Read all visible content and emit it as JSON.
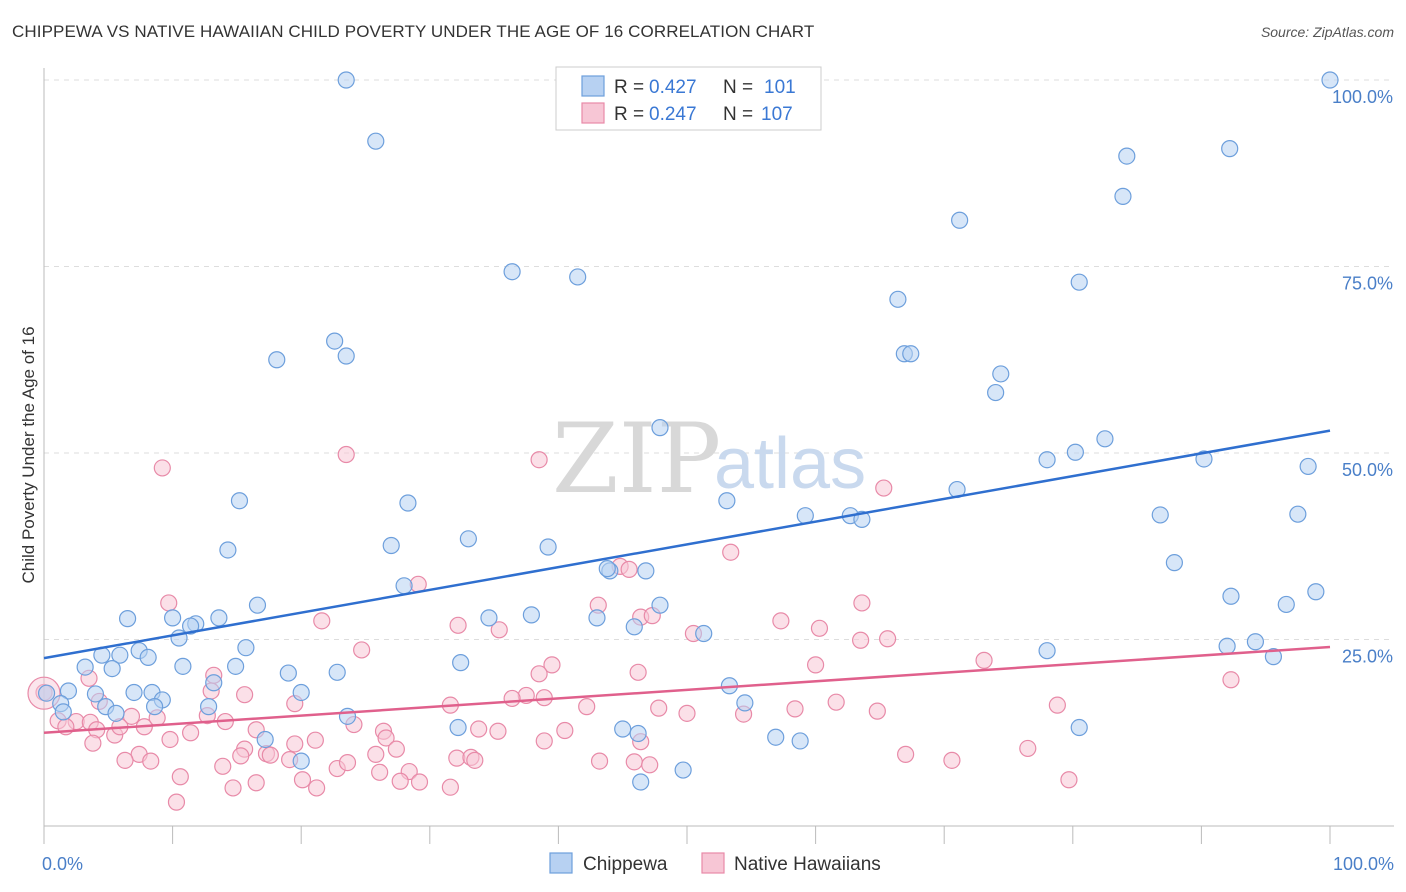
{
  "title": "CHIPPEWA VS NATIVE HAWAIIAN CHILD POVERTY UNDER THE AGE OF 16 CORRELATION CHART",
  "source": "Source: ZipAtlas.com",
  "watermark": {
    "zip": "ZIP",
    "atlas": "atlas"
  },
  "colors": {
    "series1_fill": "#b7d1f2",
    "series1_stroke": "#6d9fdc",
    "series1_line": "#2f6fcf",
    "series2_fill": "#f7c6d5",
    "series2_stroke": "#e88aa8",
    "series2_line": "#e0608c",
    "axis_text": "#4a7fc8",
    "grid": "#dddddd"
  },
  "legend_top": {
    "r_label": "R =",
    "n_label": "N =",
    "rows": [
      {
        "r": "0.427",
        "n": "101"
      },
      {
        "r": "0.247",
        "n": "107"
      }
    ]
  },
  "chart_data": {
    "type": "scatter",
    "title": "CHIPPEWA VS NATIVE HAWAIIAN CHILD POVERTY UNDER THE AGE OF 16 CORRELATION CHART",
    "xlabel": "",
    "ylabel": "Child Poverty Under the Age of 16",
    "xlim": [
      0,
      100
    ],
    "ylim": [
      0,
      100
    ],
    "x_tick_labels": [
      "0.0%",
      "100.0%"
    ],
    "y_ticks": [
      25,
      50,
      75,
      100
    ],
    "y_tick_labels": [
      "25.0%",
      "50.0%",
      "75.0%",
      "100.0%"
    ],
    "grid": true,
    "legend_position": "bottom",
    "series": [
      {
        "name": "Chippewa",
        "R": 0.427,
        "N": 101,
        "trend": {
          "x": [
            0,
            100
          ],
          "y": [
            22.5,
            53
          ]
        },
        "points": [
          [
            23.5,
            100
          ],
          [
            100,
            100
          ],
          [
            25.8,
            91.8
          ],
          [
            84.2,
            89.8
          ],
          [
            92.2,
            90.8
          ],
          [
            83.9,
            84.4
          ],
          [
            71.2,
            81.2
          ],
          [
            36.4,
            74.3
          ],
          [
            41.5,
            73.6
          ],
          [
            80.5,
            72.9
          ],
          [
            66.4,
            70.6
          ],
          [
            22.6,
            65.0
          ],
          [
            23.5,
            63.0
          ],
          [
            18.1,
            62.5
          ],
          [
            66.9,
            63.3
          ],
          [
            67.4,
            63.3
          ],
          [
            74.4,
            60.6
          ],
          [
            74.0,
            58.1
          ],
          [
            47.9,
            53.4
          ],
          [
            82.5,
            51.9
          ],
          [
            80.2,
            50.1
          ],
          [
            78.0,
            49.1
          ],
          [
            90.2,
            49.2
          ],
          [
            98.3,
            48.2
          ],
          [
            71.0,
            45.1
          ],
          [
            15.2,
            43.6
          ],
          [
            28.3,
            43.3
          ],
          [
            53.1,
            43.6
          ],
          [
            59.2,
            41.6
          ],
          [
            62.7,
            41.6
          ],
          [
            63.6,
            41.1
          ],
          [
            86.8,
            41.7
          ],
          [
            97.5,
            41.8
          ],
          [
            33.0,
            38.5
          ],
          [
            27.0,
            37.6
          ],
          [
            39.2,
            37.4
          ],
          [
            14.3,
            37.0
          ],
          [
            87.9,
            35.3
          ],
          [
            44.0,
            34.2
          ],
          [
            46.8,
            34.2
          ],
          [
            28.0,
            32.2
          ],
          [
            92.3,
            30.8
          ],
          [
            16.6,
            29.6
          ],
          [
            47.9,
            29.6
          ],
          [
            96.6,
            29.7
          ],
          [
            98.9,
            31.4
          ],
          [
            6.5,
            27.8
          ],
          [
            10.0,
            27.9
          ],
          [
            11.8,
            27.1
          ],
          [
            11.4,
            26.8
          ],
          [
            13.6,
            27.9
          ],
          [
            34.6,
            27.9
          ],
          [
            37.9,
            28.3
          ],
          [
            43.0,
            27.9
          ],
          [
            45.9,
            26.7
          ],
          [
            51.3,
            25.8
          ],
          [
            10.5,
            25.2
          ],
          [
            15.7,
            23.9
          ],
          [
            7.4,
            23.5
          ],
          [
            4.5,
            22.9
          ],
          [
            5.9,
            22.9
          ],
          [
            8.1,
            22.6
          ],
          [
            94.2,
            24.7
          ],
          [
            78.0,
            23.5
          ],
          [
            92.0,
            24.1
          ],
          [
            95.6,
            22.7
          ],
          [
            32.4,
            21.9
          ],
          [
            10.8,
            21.4
          ],
          [
            14.9,
            21.4
          ],
          [
            19.0,
            20.5
          ],
          [
            3.2,
            21.3
          ],
          [
            5.3,
            21.1
          ],
          [
            22.8,
            20.6
          ],
          [
            13.2,
            19.2
          ],
          [
            53.3,
            18.8
          ],
          [
            1.9,
            18.1
          ],
          [
            4.0,
            17.7
          ],
          [
            7.0,
            17.9
          ],
          [
            8.4,
            17.9
          ],
          [
            20.0,
            17.9
          ],
          [
            9.2,
            16.9
          ],
          [
            1.3,
            16.4
          ],
          [
            4.8,
            16.0
          ],
          [
            8.6,
            16.0
          ],
          [
            12.8,
            16.0
          ],
          [
            0.2,
            17.8
          ],
          [
            1.5,
            15.3
          ],
          [
            5.6,
            15.1
          ],
          [
            54.5,
            16.5
          ],
          [
            17.2,
            11.6
          ],
          [
            32.2,
            13.2
          ],
          [
            45.0,
            13.0
          ],
          [
            46.2,
            12.4
          ],
          [
            56.9,
            11.9
          ],
          [
            58.8,
            11.4
          ],
          [
            23.6,
            14.7
          ],
          [
            80.5,
            13.2
          ],
          [
            20.0,
            8.7
          ],
          [
            46.4,
            5.9
          ],
          [
            49.7,
            7.5
          ],
          [
            43.8,
            34.5
          ]
        ]
      },
      {
        "name": "Native Hawaiians",
        "R": 0.247,
        "N": 107,
        "trend": {
          "x": [
            0,
            100
          ],
          "y": [
            12.5,
            24.0
          ]
        },
        "points": [
          [
            23.5,
            49.8
          ],
          [
            38.5,
            49.1
          ],
          [
            9.2,
            48.0
          ],
          [
            65.3,
            45.3
          ],
          [
            53.4,
            36.7
          ],
          [
            44.8,
            34.8
          ],
          [
            45.5,
            34.4
          ],
          [
            29.1,
            32.4
          ],
          [
            9.7,
            29.9
          ],
          [
            63.6,
            29.9
          ],
          [
            43.1,
            29.6
          ],
          [
            46.4,
            28.0
          ],
          [
            47.3,
            28.2
          ],
          [
            21.6,
            27.5
          ],
          [
            32.2,
            26.9
          ],
          [
            35.4,
            26.3
          ],
          [
            57.3,
            27.5
          ],
          [
            60.3,
            26.5
          ],
          [
            50.5,
            25.8
          ],
          [
            63.5,
            24.9
          ],
          [
            65.6,
            25.1
          ],
          [
            24.7,
            23.6
          ],
          [
            73.1,
            22.2
          ],
          [
            60.0,
            21.6
          ],
          [
            39.5,
            21.6
          ],
          [
            38.5,
            20.4
          ],
          [
            46.2,
            20.6
          ],
          [
            13.2,
            20.2
          ],
          [
            92.3,
            19.6
          ],
          [
            3.5,
            19.8
          ],
          [
            13.0,
            18.1
          ],
          [
            15.6,
            17.6
          ],
          [
            0.0,
            17.9
          ],
          [
            37.5,
            17.5
          ],
          [
            36.4,
            17.1
          ],
          [
            38.9,
            17.2
          ],
          [
            19.5,
            16.4
          ],
          [
            4.3,
            16.7
          ],
          [
            31.6,
            16.2
          ],
          [
            42.2,
            16.0
          ],
          [
            47.8,
            15.8
          ],
          [
            58.4,
            15.7
          ],
          [
            61.6,
            16.6
          ],
          [
            64.8,
            15.4
          ],
          [
            78.8,
            16.2
          ],
          [
            54.4,
            15.0
          ],
          [
            50.0,
            15.1
          ],
          [
            12.7,
            14.8
          ],
          [
            6.8,
            14.7
          ],
          [
            1.1,
            14.1
          ],
          [
            2.5,
            14.0
          ],
          [
            1.7,
            13.3
          ],
          [
            3.6,
            13.9
          ],
          [
            7.8,
            13.3
          ],
          [
            8.8,
            14.5
          ],
          [
            14.1,
            14.0
          ],
          [
            16.5,
            12.9
          ],
          [
            24.1,
            13.6
          ],
          [
            26.4,
            12.7
          ],
          [
            33.8,
            13.0
          ],
          [
            35.3,
            12.7
          ],
          [
            40.5,
            12.8
          ],
          [
            46.4,
            11.3
          ],
          [
            4.1,
            12.9
          ],
          [
            5.5,
            12.2
          ],
          [
            5.9,
            13.3
          ],
          [
            9.8,
            11.6
          ],
          [
            11.4,
            12.5
          ],
          [
            15.6,
            10.3
          ],
          [
            17.3,
            9.7
          ],
          [
            19.5,
            11.0
          ],
          [
            21.1,
            11.5
          ],
          [
            26.6,
            11.8
          ],
          [
            27.4,
            10.3
          ],
          [
            38.9,
            11.4
          ],
          [
            3.8,
            11.1
          ],
          [
            7.4,
            9.6
          ],
          [
            6.3,
            8.8
          ],
          [
            8.3,
            8.7
          ],
          [
            13.9,
            8.0
          ],
          [
            15.3,
            9.4
          ],
          [
            17.6,
            9.5
          ],
          [
            19.1,
            8.9
          ],
          [
            22.8,
            7.7
          ],
          [
            23.6,
            8.5
          ],
          [
            25.8,
            9.6
          ],
          [
            26.1,
            7.2
          ],
          [
            28.4,
            7.3
          ],
          [
            32.1,
            9.1
          ],
          [
            33.2,
            9.2
          ],
          [
            33.5,
            8.8
          ],
          [
            43.2,
            8.7
          ],
          [
            45.9,
            8.6
          ],
          [
            47.1,
            8.2
          ],
          [
            67.0,
            9.6
          ],
          [
            70.6,
            8.8
          ],
          [
            76.5,
            10.4
          ],
          [
            10.6,
            6.6
          ],
          [
            14.7,
            5.1
          ],
          [
            16.5,
            5.8
          ],
          [
            20.1,
            6.2
          ],
          [
            21.2,
            5.1
          ],
          [
            27.7,
            6.0
          ],
          [
            29.2,
            5.9
          ],
          [
            31.6,
            5.2
          ],
          [
            79.7,
            6.2
          ],
          [
            10.3,
            3.2
          ]
        ]
      }
    ]
  },
  "legend_bottom": [
    {
      "label": "Chippewa"
    },
    {
      "label": "Native Hawaiians"
    }
  ]
}
